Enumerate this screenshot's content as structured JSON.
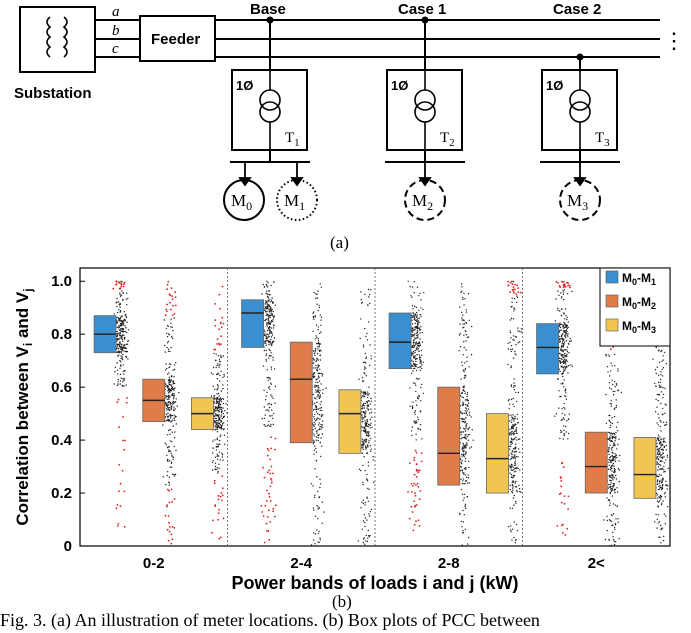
{
  "diagram": {
    "substation_label": "Substation",
    "phases": [
      "a",
      "b",
      "c"
    ],
    "feeder_label": "Feeder",
    "columns": [
      {
        "title": "Base",
        "phase_label": "1Ø",
        "transformer": "T",
        "transformer_sub": "1"
      },
      {
        "title": "Case 1",
        "phase_label": "1Ø",
        "transformer": "T",
        "transformer_sub": "2"
      },
      {
        "title": "Case 2",
        "phase_label": "1Ø",
        "transformer": "T",
        "transformer_sub": "3"
      }
    ],
    "meters": [
      {
        "label": "M",
        "sub": "0",
        "style": "solid"
      },
      {
        "label": "M",
        "sub": "1",
        "style": "dotted"
      },
      {
        "label": "M",
        "sub": "2",
        "style": "dashed"
      },
      {
        "label": "M",
        "sub": "3",
        "style": "dashed"
      }
    ],
    "more_indicator": "⋮",
    "subfigure_label": "(a)"
  },
  "chart_data": {
    "type": "box",
    "title": "",
    "xlabel": "Power bands of loads i and j (kW)",
    "ylabel": "Correlation between V",
    "ylabel_sub_i": "i",
    "ylabel_mid": " and V",
    "ylabel_sub_j": "j",
    "ylim": [
      0,
      1.05
    ],
    "yticks": [
      0,
      0.2,
      0.4,
      0.6,
      0.8,
      1.0
    ],
    "ytick_labels": [
      "0",
      "0.2",
      "0.4",
      "0.6",
      "0.8",
      "1.0"
    ],
    "categories": [
      "0-2",
      "2-4",
      "2-8",
      "2<"
    ],
    "legend_position": "top-right",
    "series": [
      {
        "name": "M0-M1",
        "label_main": "M",
        "label_sub1": "0",
        "label_dash": "-M",
        "label_sub2": "1",
        "color": "#3a8fd1",
        "boxes": [
          {
            "q1": 0.73,
            "median": 0.8,
            "q3": 0.87,
            "whisker_low": 0.6,
            "whisker_high": 0.97
          },
          {
            "q1": 0.75,
            "median": 0.88,
            "q3": 0.93,
            "whisker_low": 0.45,
            "whisker_high": 1.0
          },
          {
            "q1": 0.67,
            "median": 0.77,
            "q3": 0.88,
            "whisker_low": 0.4,
            "whisker_high": 1.0
          },
          {
            "q1": 0.65,
            "median": 0.75,
            "q3": 0.84,
            "whisker_low": 0.4,
            "whisker_high": 0.97
          }
        ]
      },
      {
        "name": "M0-M2",
        "label_main": "M",
        "label_sub1": "0",
        "label_dash": "-M",
        "label_sub2": "2",
        "color": "#e07b4a",
        "boxes": [
          {
            "q1": 0.47,
            "median": 0.55,
            "q3": 0.63,
            "whisker_low": 0.23,
            "whisker_high": 0.87
          },
          {
            "q1": 0.39,
            "median": 0.63,
            "q3": 0.77,
            "whisker_low": 0.0,
            "whisker_high": 1.0
          },
          {
            "q1": 0.23,
            "median": 0.35,
            "q3": 0.6,
            "whisker_low": 0.0,
            "whisker_high": 1.0
          },
          {
            "q1": 0.2,
            "median": 0.3,
            "q3": 0.43,
            "whisker_low": 0.0,
            "whisker_high": 0.73
          }
        ]
      },
      {
        "name": "M0-M3",
        "label_main": "M",
        "label_sub1": "0",
        "label_dash": "-M",
        "label_sub2": "3",
        "color": "#f0c552",
        "boxes": [
          {
            "q1": 0.44,
            "median": 0.5,
            "q3": 0.56,
            "whisker_low": 0.27,
            "whisker_high": 0.73
          },
          {
            "q1": 0.35,
            "median": 0.5,
            "q3": 0.59,
            "whisker_low": 0.0,
            "whisker_high": 1.0
          },
          {
            "q1": 0.2,
            "median": 0.33,
            "q3": 0.5,
            "whisker_low": 0.0,
            "whisker_high": 0.95
          },
          {
            "q1": 0.18,
            "median": 0.27,
            "q3": 0.41,
            "whisker_low": 0.0,
            "whisker_high": 0.78
          }
        ]
      }
    ],
    "outlier_color": "#e02020",
    "scatter_color": "#222222",
    "subfigure_label": "(b)"
  },
  "caption": "Fig. 3.  (a) An illustration of meter locations.  (b) Box plots of PCC between"
}
